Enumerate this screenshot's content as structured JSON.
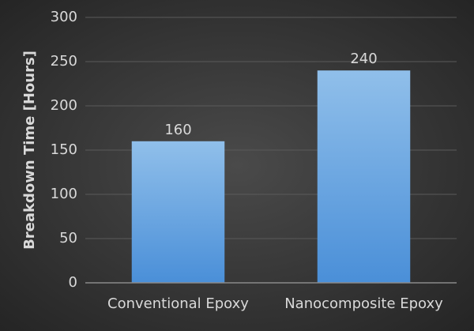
{
  "chart_data": {
    "type": "bar",
    "y_label": "Breakdown Time [Hours]",
    "categories": [
      "Conventional Epoxy",
      "Nanocomposite Epoxy"
    ],
    "values": [
      160,
      240
    ],
    "color": "#5b9bd5",
    "ylim": [
      0,
      300
    ],
    "yticks": [
      0,
      50,
      100,
      150,
      200,
      250,
      300
    ],
    "grid": true
  }
}
